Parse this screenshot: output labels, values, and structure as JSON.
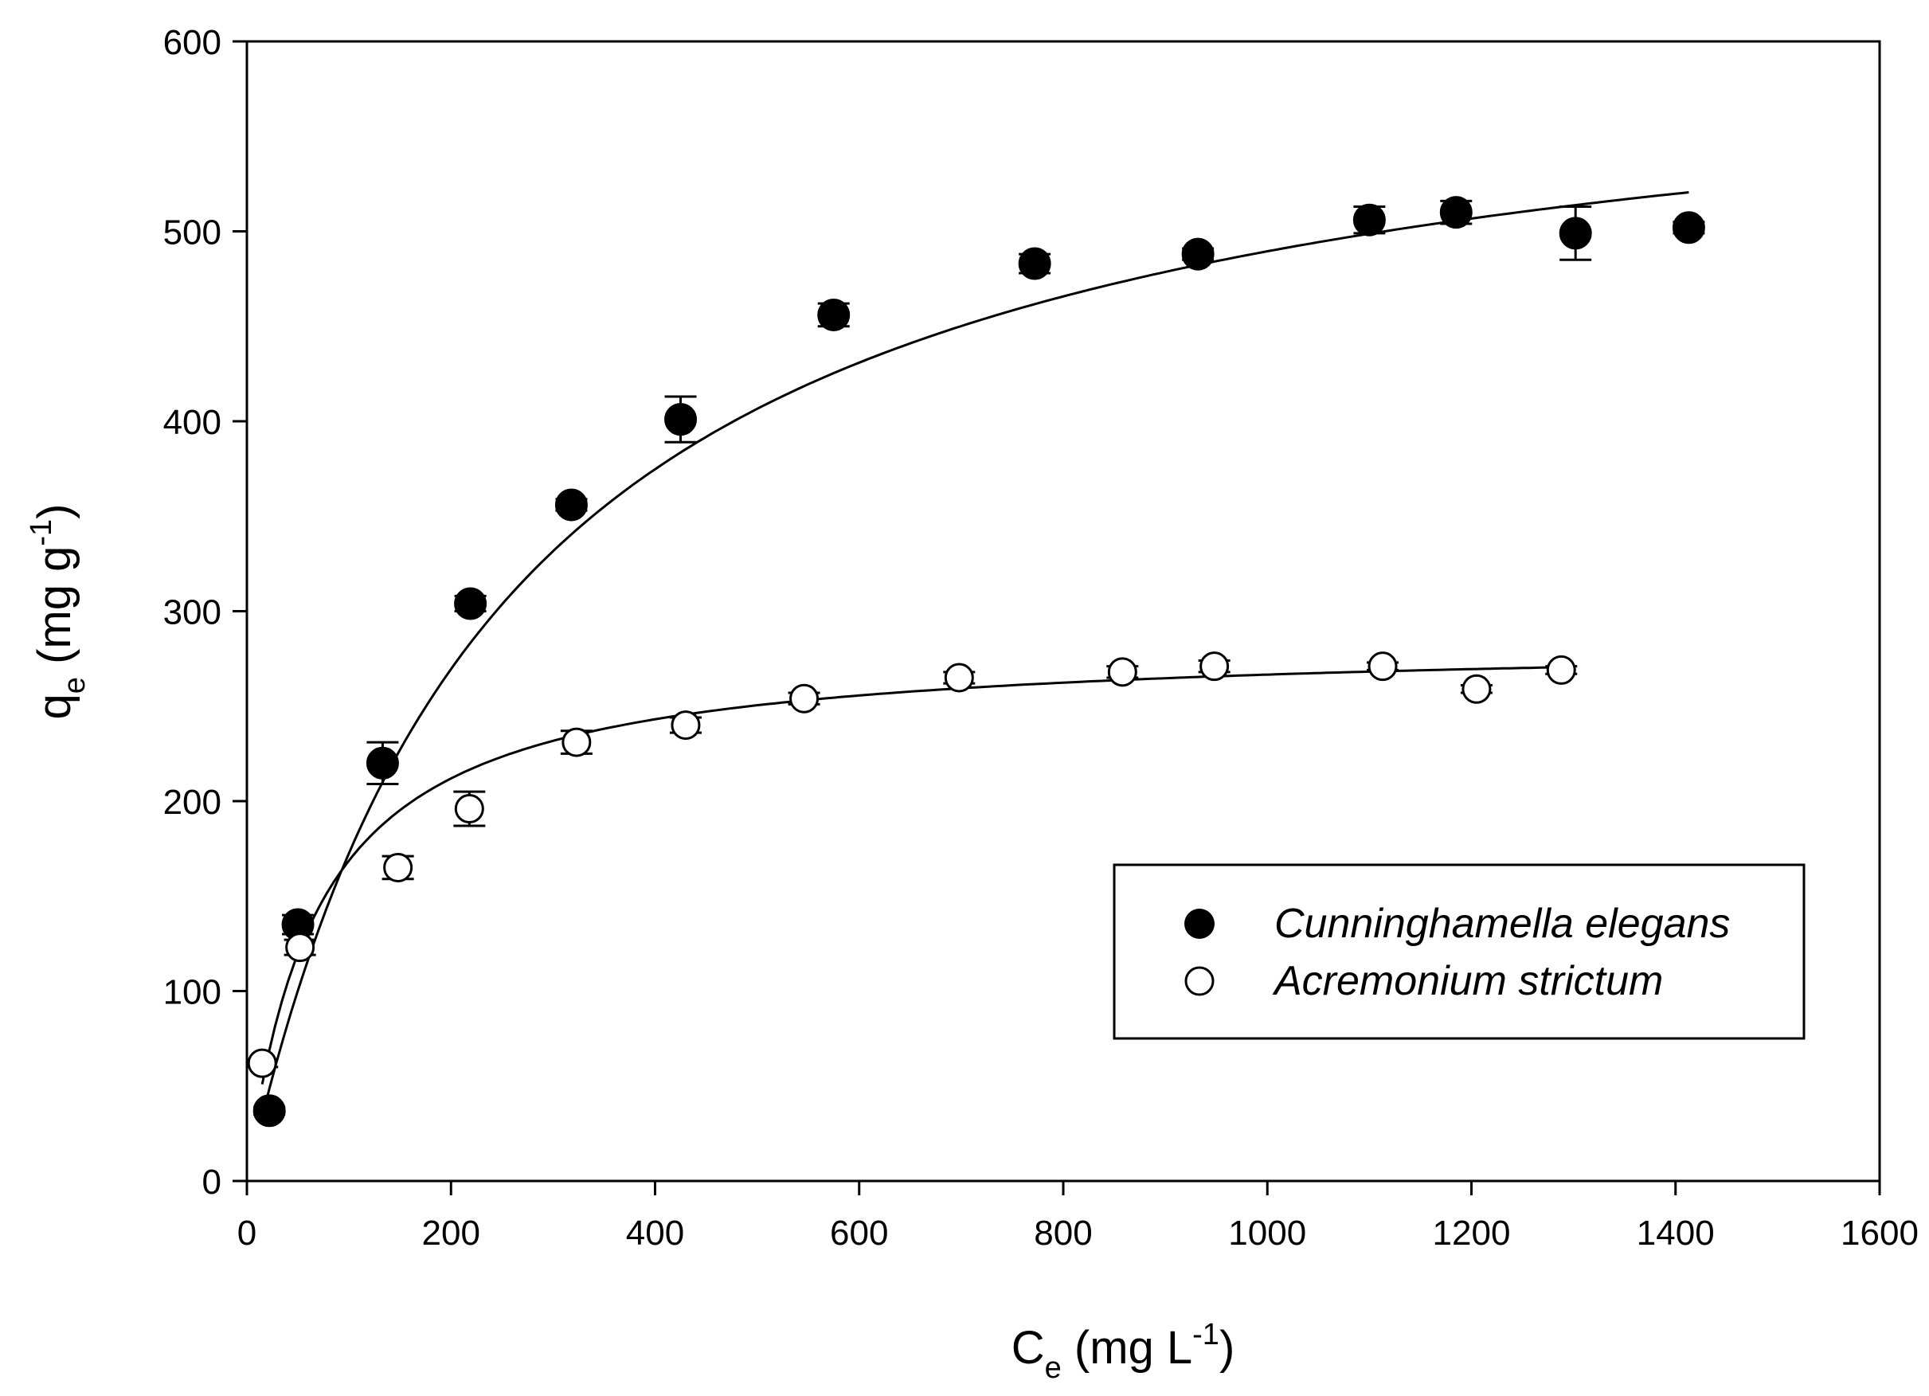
{
  "chart_data": {
    "type": "scatter",
    "title": "",
    "xlabel": {
      "main": "C",
      "sub": "e",
      "unit": " (mg L",
      "sup": "-1",
      "close": ")"
    },
    "ylabel": {
      "main": "q",
      "sub": "e",
      "unit": " (mg g",
      "sup": "-1",
      "close": ")"
    },
    "xlim": [
      0,
      1600
    ],
    "ylim": [
      0,
      600
    ],
    "xticks": [
      0,
      200,
      400,
      600,
      800,
      1000,
      1200,
      1400,
      1600
    ],
    "yticks": [
      0,
      100,
      200,
      300,
      400,
      500,
      600
    ],
    "grid": false,
    "legend_position": "bottom-right",
    "series": [
      {
        "name": "Cunninghamella elegans",
        "marker": "filled-circle",
        "points": [
          {
            "x": 22,
            "y": 37,
            "err": 2
          },
          {
            "x": 50,
            "y": 135,
            "err": 5
          },
          {
            "x": 133,
            "y": 220,
            "err": 11
          },
          {
            "x": 219,
            "y": 304,
            "err": 4
          },
          {
            "x": 318,
            "y": 356,
            "err": 3
          },
          {
            "x": 425,
            "y": 401,
            "err": 12
          },
          {
            "x": 575,
            "y": 456,
            "err": 6
          },
          {
            "x": 772,
            "y": 483,
            "err": 5
          },
          {
            "x": 932,
            "y": 488,
            "err": 3
          },
          {
            "x": 1100,
            "y": 506,
            "err": 7
          },
          {
            "x": 1185,
            "y": 510,
            "err": 6
          },
          {
            "x": 1302,
            "y": 499,
            "err": 14
          },
          {
            "x": 1413,
            "y": 502,
            "err": 3
          }
        ],
        "fit": {
          "model": "langmuir",
          "qmax": 615,
          "KL": 0.0039,
          "x_start": 15,
          "x_end": 1413
        }
      },
      {
        "name": "Acremonium strictum",
        "marker": "open-circle",
        "points": [
          {
            "x": 15,
            "y": 62,
            "err": 2
          },
          {
            "x": 52,
            "y": 123,
            "err": 4
          },
          {
            "x": 148,
            "y": 165,
            "err": 6
          },
          {
            "x": 218,
            "y": 196,
            "err": 9
          },
          {
            "x": 323,
            "y": 231,
            "err": 6
          },
          {
            "x": 430,
            "y": 240,
            "err": 4
          },
          {
            "x": 546,
            "y": 254,
            "err": 3
          },
          {
            "x": 698,
            "y": 265,
            "err": 3
          },
          {
            "x": 858,
            "y": 268,
            "err": 3
          },
          {
            "x": 948,
            "y": 271,
            "err": 3
          },
          {
            "x": 1113,
            "y": 271,
            "err": 2
          },
          {
            "x": 1205,
            "y": 259,
            "err": 2
          },
          {
            "x": 1288,
            "y": 269,
            "err": 2
          }
        ],
        "fit": {
          "model": "langmuir",
          "qmax": 285,
          "KL": 0.0145,
          "x_start": 15,
          "x_end": 1288
        }
      }
    ]
  }
}
